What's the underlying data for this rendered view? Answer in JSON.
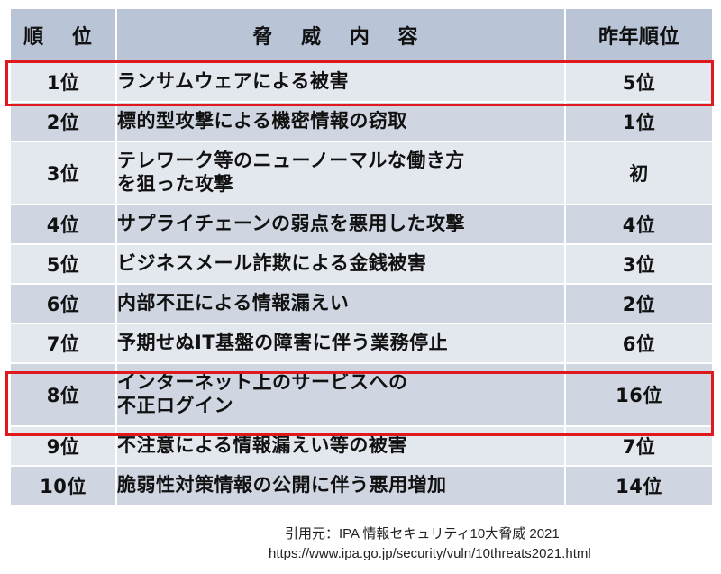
{
  "table": {
    "headers": {
      "rank": "順 位",
      "threat": "脅 威 内 容",
      "previous_rank": "昨年順位"
    },
    "rows": [
      {
        "rank": "1位",
        "threat_line1": "ランサムウェアによる被害",
        "threat_line2": "",
        "previous_rank": "5位",
        "highlighted": true
      },
      {
        "rank": "2位",
        "threat_line1": "標的型攻撃による機密情報の窃取",
        "threat_line2": "",
        "previous_rank": "1位",
        "highlighted": false
      },
      {
        "rank": "3位",
        "threat_line1": "テレワーク等のニューノーマルな働き方",
        "threat_line2": "を狙った攻撃",
        "previous_rank": "初",
        "highlighted": false
      },
      {
        "rank": "4位",
        "threat_line1": "サプライチェーンの弱点を悪用した攻撃",
        "threat_line2": "",
        "previous_rank": "4位",
        "highlighted": false
      },
      {
        "rank": "5位",
        "threat_line1": "ビジネスメール詐欺による金銭被害",
        "threat_line2": "",
        "previous_rank": "3位",
        "highlighted": false
      },
      {
        "rank": "6位",
        "threat_line1": "内部不正による情報漏えい",
        "threat_line2": "",
        "previous_rank": "2位",
        "highlighted": false
      },
      {
        "rank": "7位",
        "threat_line1": "予期せぬIT基盤の障害に伴う業務停止",
        "threat_line2": "",
        "previous_rank": "6位",
        "highlighted": false
      },
      {
        "rank": "8位",
        "threat_line1": "インターネット上のサービスへの",
        "threat_line2": "不正ログイン",
        "previous_rank": "16位",
        "highlighted": true
      },
      {
        "rank": "9位",
        "threat_line1": "不注意による情報漏えい等の被害",
        "threat_line2": "",
        "previous_rank": "7位",
        "highlighted": false
      },
      {
        "rank": "10位",
        "threat_line1": "脆弱性対策情報の公開に伴う悪用増加",
        "threat_line2": "",
        "previous_rank": "14位",
        "highlighted": false
      }
    ]
  },
  "citation": {
    "source": "引用元：IPA 情報セキュリティ10大脅威 2021",
    "url": "https://www.ipa.go.jp/security/vuln/10threats2021.html"
  },
  "colors": {
    "header_bg": "#b9c4d7",
    "row_light": "#e3e7ee",
    "row_dark": "#cfd6e2",
    "highlight_border": "#e0191e"
  }
}
